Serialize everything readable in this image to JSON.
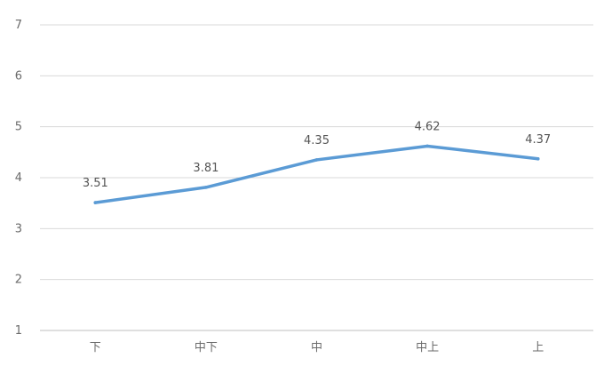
{
  "chart_data": {
    "type": "line",
    "title": "",
    "xlabel": "",
    "ylabel": "",
    "categories": [
      "下",
      "中下",
      "中",
      "中上",
      "上"
    ],
    "series": [
      {
        "values": [
          3.51,
          3.81,
          4.35,
          4.62,
          4.37
        ],
        "color": "#5b9bd5"
      }
    ],
    "data_labels": [
      "3.51",
      "3.81",
      "4.35",
      "4.62",
      "4.37"
    ],
    "ylim": [
      1,
      7
    ],
    "yticks": [
      1,
      2,
      3,
      4,
      5,
      6,
      7
    ],
    "grid": true,
    "gridColor": "#d9d9d9",
    "axisColor": "#bfbfbf"
  }
}
